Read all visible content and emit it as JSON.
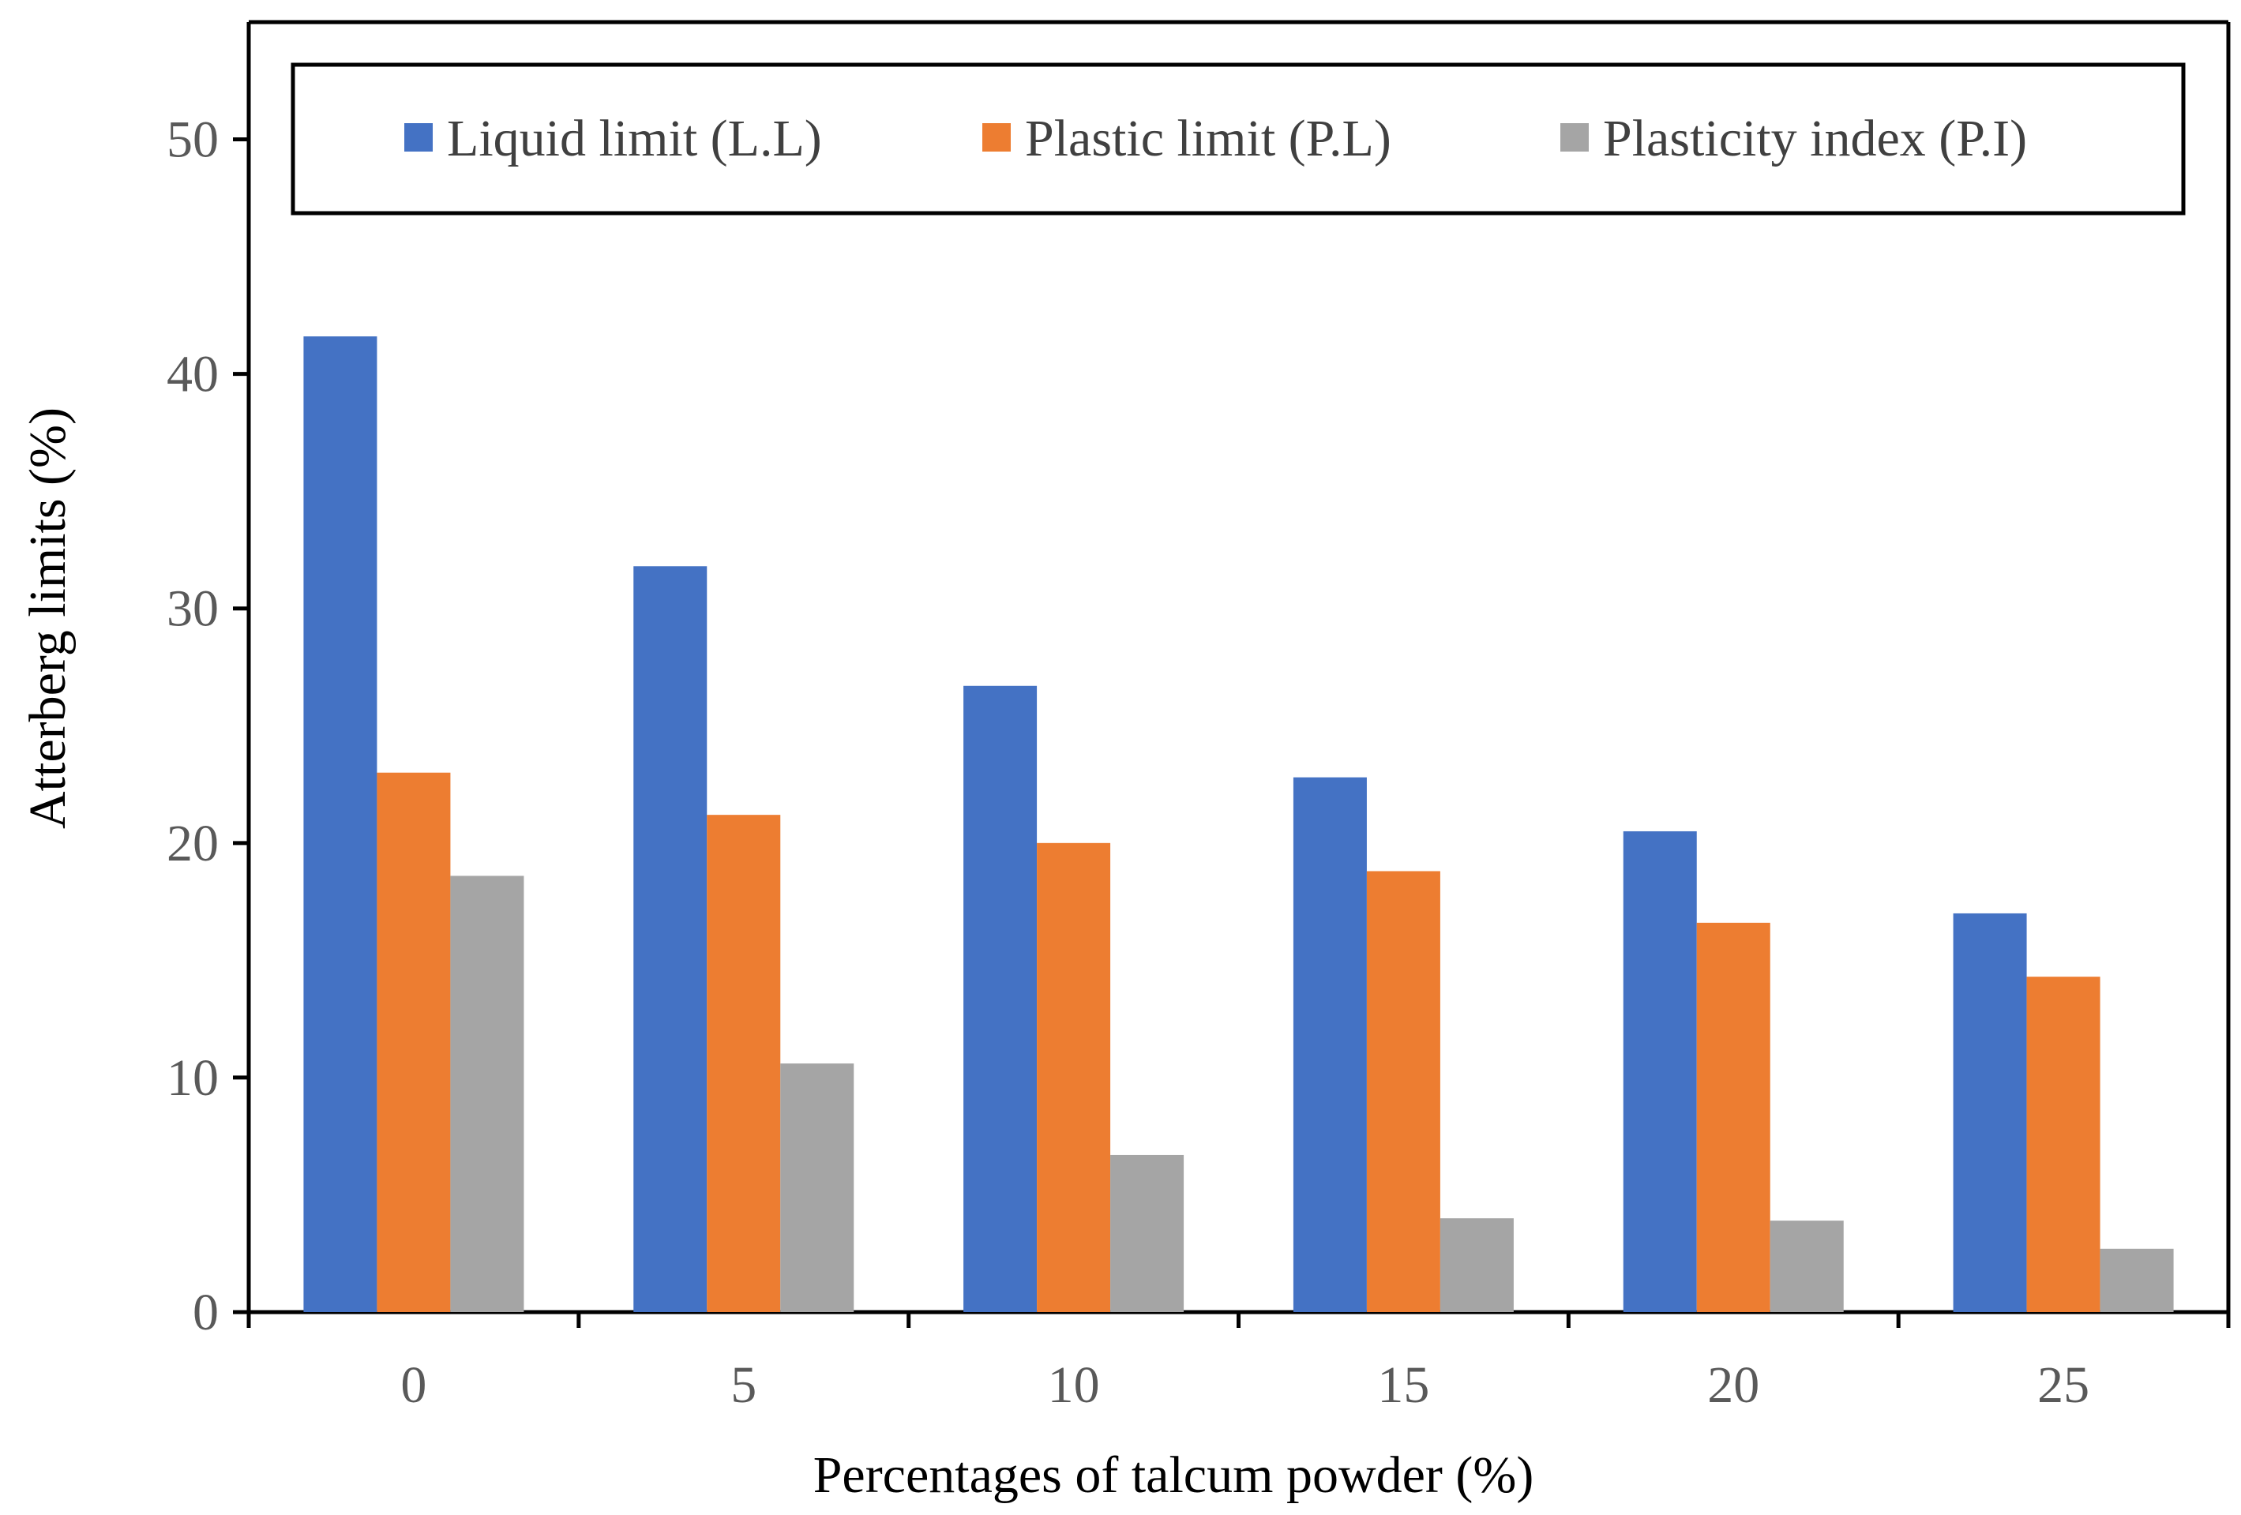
{
  "chart_data": {
    "type": "bar",
    "title": "",
    "xlabel": "Percentages of talcum powder (%)",
    "ylabel": "Atterberg limits (%)",
    "ylim": [
      0,
      55
    ],
    "yticks": [
      0,
      10,
      20,
      30,
      40,
      50
    ],
    "grid": false,
    "legend_position": "top",
    "categories": [
      "0",
      "5",
      "10",
      "15",
      "20",
      "25"
    ],
    "series": [
      {
        "name": "Liquid limit (L.L)",
        "color": "#4472C4",
        "values": [
          41.6,
          31.8,
          26.7,
          22.8,
          20.5,
          17.0
        ]
      },
      {
        "name": "Plastic limit (P.L)",
        "color": "#ED7D31",
        "values": [
          23.0,
          21.2,
          20.0,
          18.8,
          16.6,
          14.3
        ]
      },
      {
        "name": "Plasticity index (P.I)",
        "color": "#A5A5A5",
        "values": [
          18.6,
          10.6,
          6.7,
          4.0,
          3.9,
          2.7
        ]
      }
    ]
  }
}
